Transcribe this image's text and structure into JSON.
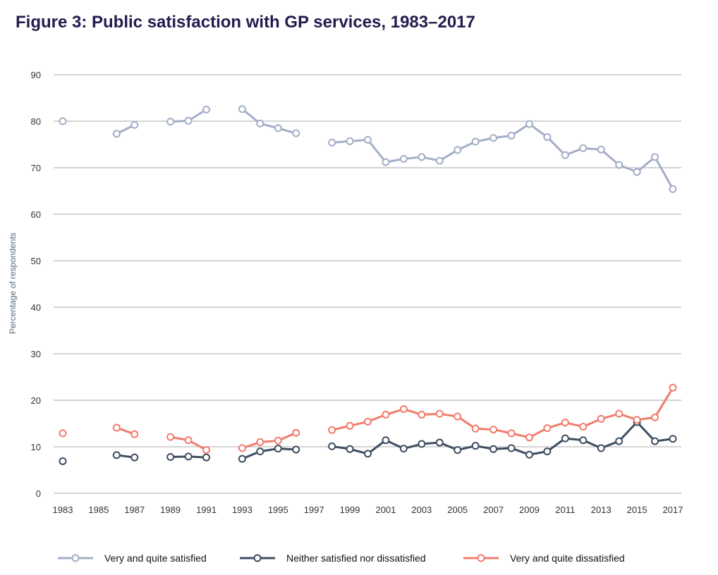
{
  "title": "Figure 3: Public satisfaction with GP services, 1983–2017",
  "chart_data": {
    "type": "line",
    "title": "Figure 3: Public satisfaction with GP services, 1983–2017",
    "xlabel": "",
    "ylabel": "Percentage of respondents",
    "x": [
      1983,
      1984,
      1985,
      1986,
      1987,
      1988,
      1989,
      1990,
      1991,
      1992,
      1993,
      1994,
      1995,
      1996,
      1997,
      1998,
      1999,
      2000,
      2001,
      2002,
      2003,
      2004,
      2005,
      2006,
      2007,
      2008,
      2009,
      2010,
      2011,
      2012,
      2013,
      2014,
      2015,
      2016,
      2017
    ],
    "xticks": [
      "1983",
      "1985",
      "1987",
      "1989",
      "1991",
      "1993",
      "1995",
      "1997",
      "1999",
      "2001",
      "2003",
      "2005",
      "2007",
      "2009",
      "2011",
      "2013",
      "2015",
      "2017"
    ],
    "yticks": [
      "0",
      "10",
      "20",
      "30",
      "40",
      "50",
      "60",
      "70",
      "80",
      "90"
    ],
    "ylim": [
      0,
      90
    ],
    "grid": true,
    "series": [
      {
        "name": "Very and quite satisfied",
        "color": "#a4aec7",
        "values": [
          80,
          null,
          null,
          77.3,
          79.2,
          null,
          79.9,
          80.1,
          82.5,
          null,
          82.6,
          79.5,
          78.5,
          77.4,
          null,
          75.4,
          75.7,
          76.0,
          71.2,
          71.9,
          72.3,
          71.5,
          73.8,
          75.6,
          76.4,
          76.9,
          79.4,
          76.6,
          72.7,
          74.2,
          73.9,
          70.6,
          69.1,
          72.3,
          65.4
        ]
      },
      {
        "name": "Neither satisfied nor dissatisfied",
        "color": "#3e4d61",
        "values": [
          6.9,
          null,
          null,
          8.2,
          7.7,
          null,
          7.8,
          7.9,
          7.7,
          null,
          7.4,
          9.0,
          9.6,
          9.4,
          null,
          10.1,
          9.5,
          8.5,
          11.4,
          9.6,
          10.6,
          10.9,
          9.3,
          10.2,
          9.5,
          9.7,
          8.3,
          9.0,
          11.8,
          11.4,
          9.7,
          11.2,
          15.3,
          11.2,
          11.7
        ]
      },
      {
        "name": "Very and quite dissatisfied",
        "color": "#f27c6d",
        "values": [
          12.9,
          null,
          null,
          14.1,
          12.7,
          null,
          12.1,
          11.4,
          9.3,
          null,
          9.7,
          11.0,
          11.3,
          13.0,
          null,
          13.6,
          14.5,
          15.4,
          16.9,
          18.1,
          16.9,
          17.1,
          16.5,
          13.9,
          13.7,
          12.9,
          12.0,
          14.0,
          15.2,
          14.3,
          16.0,
          17.1,
          15.8,
          16.3,
          22.7
        ]
      }
    ]
  }
}
